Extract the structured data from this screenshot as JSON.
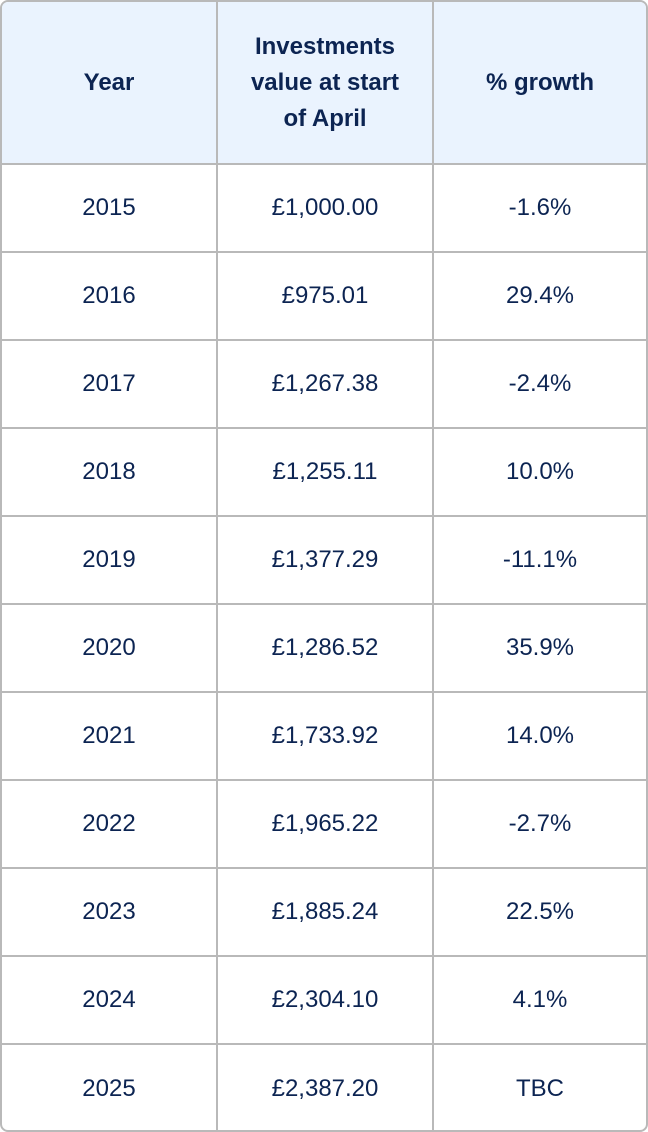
{
  "table": {
    "headers": {
      "year": "Year",
      "value": "Investments value at start of April",
      "growth": "% growth"
    },
    "rows": [
      {
        "year": "2015",
        "value": "£1,000.00",
        "growth": "-1.6%"
      },
      {
        "year": "2016",
        "value": "£975.01",
        "growth": "29.4%"
      },
      {
        "year": "2017",
        "value": "£1,267.38",
        "growth": "-2.4%"
      },
      {
        "year": "2018",
        "value": "£1,255.11",
        "growth": "10.0%"
      },
      {
        "year": "2019",
        "value": "£1,377.29",
        "growth": "-11.1%"
      },
      {
        "year": "2020",
        "value": "£1,286.52",
        "growth": "35.9%"
      },
      {
        "year": "2021",
        "value": "£1,733.92",
        "growth": "14.0%"
      },
      {
        "year": "2022",
        "value": "£1,965.22",
        "growth": "-2.7%"
      },
      {
        "year": "2023",
        "value": "£1,885.24",
        "growth": "22.5%"
      },
      {
        "year": "2024",
        "value": "£2,304.10",
        "growth": "4.1%"
      },
      {
        "year": "2025",
        "value": "£2,387.20",
        "growth": "TBC"
      }
    ]
  },
  "colors": {
    "text": "#0c2452",
    "header_bg": "#eaf3fe",
    "border": "#b9b9b9"
  }
}
